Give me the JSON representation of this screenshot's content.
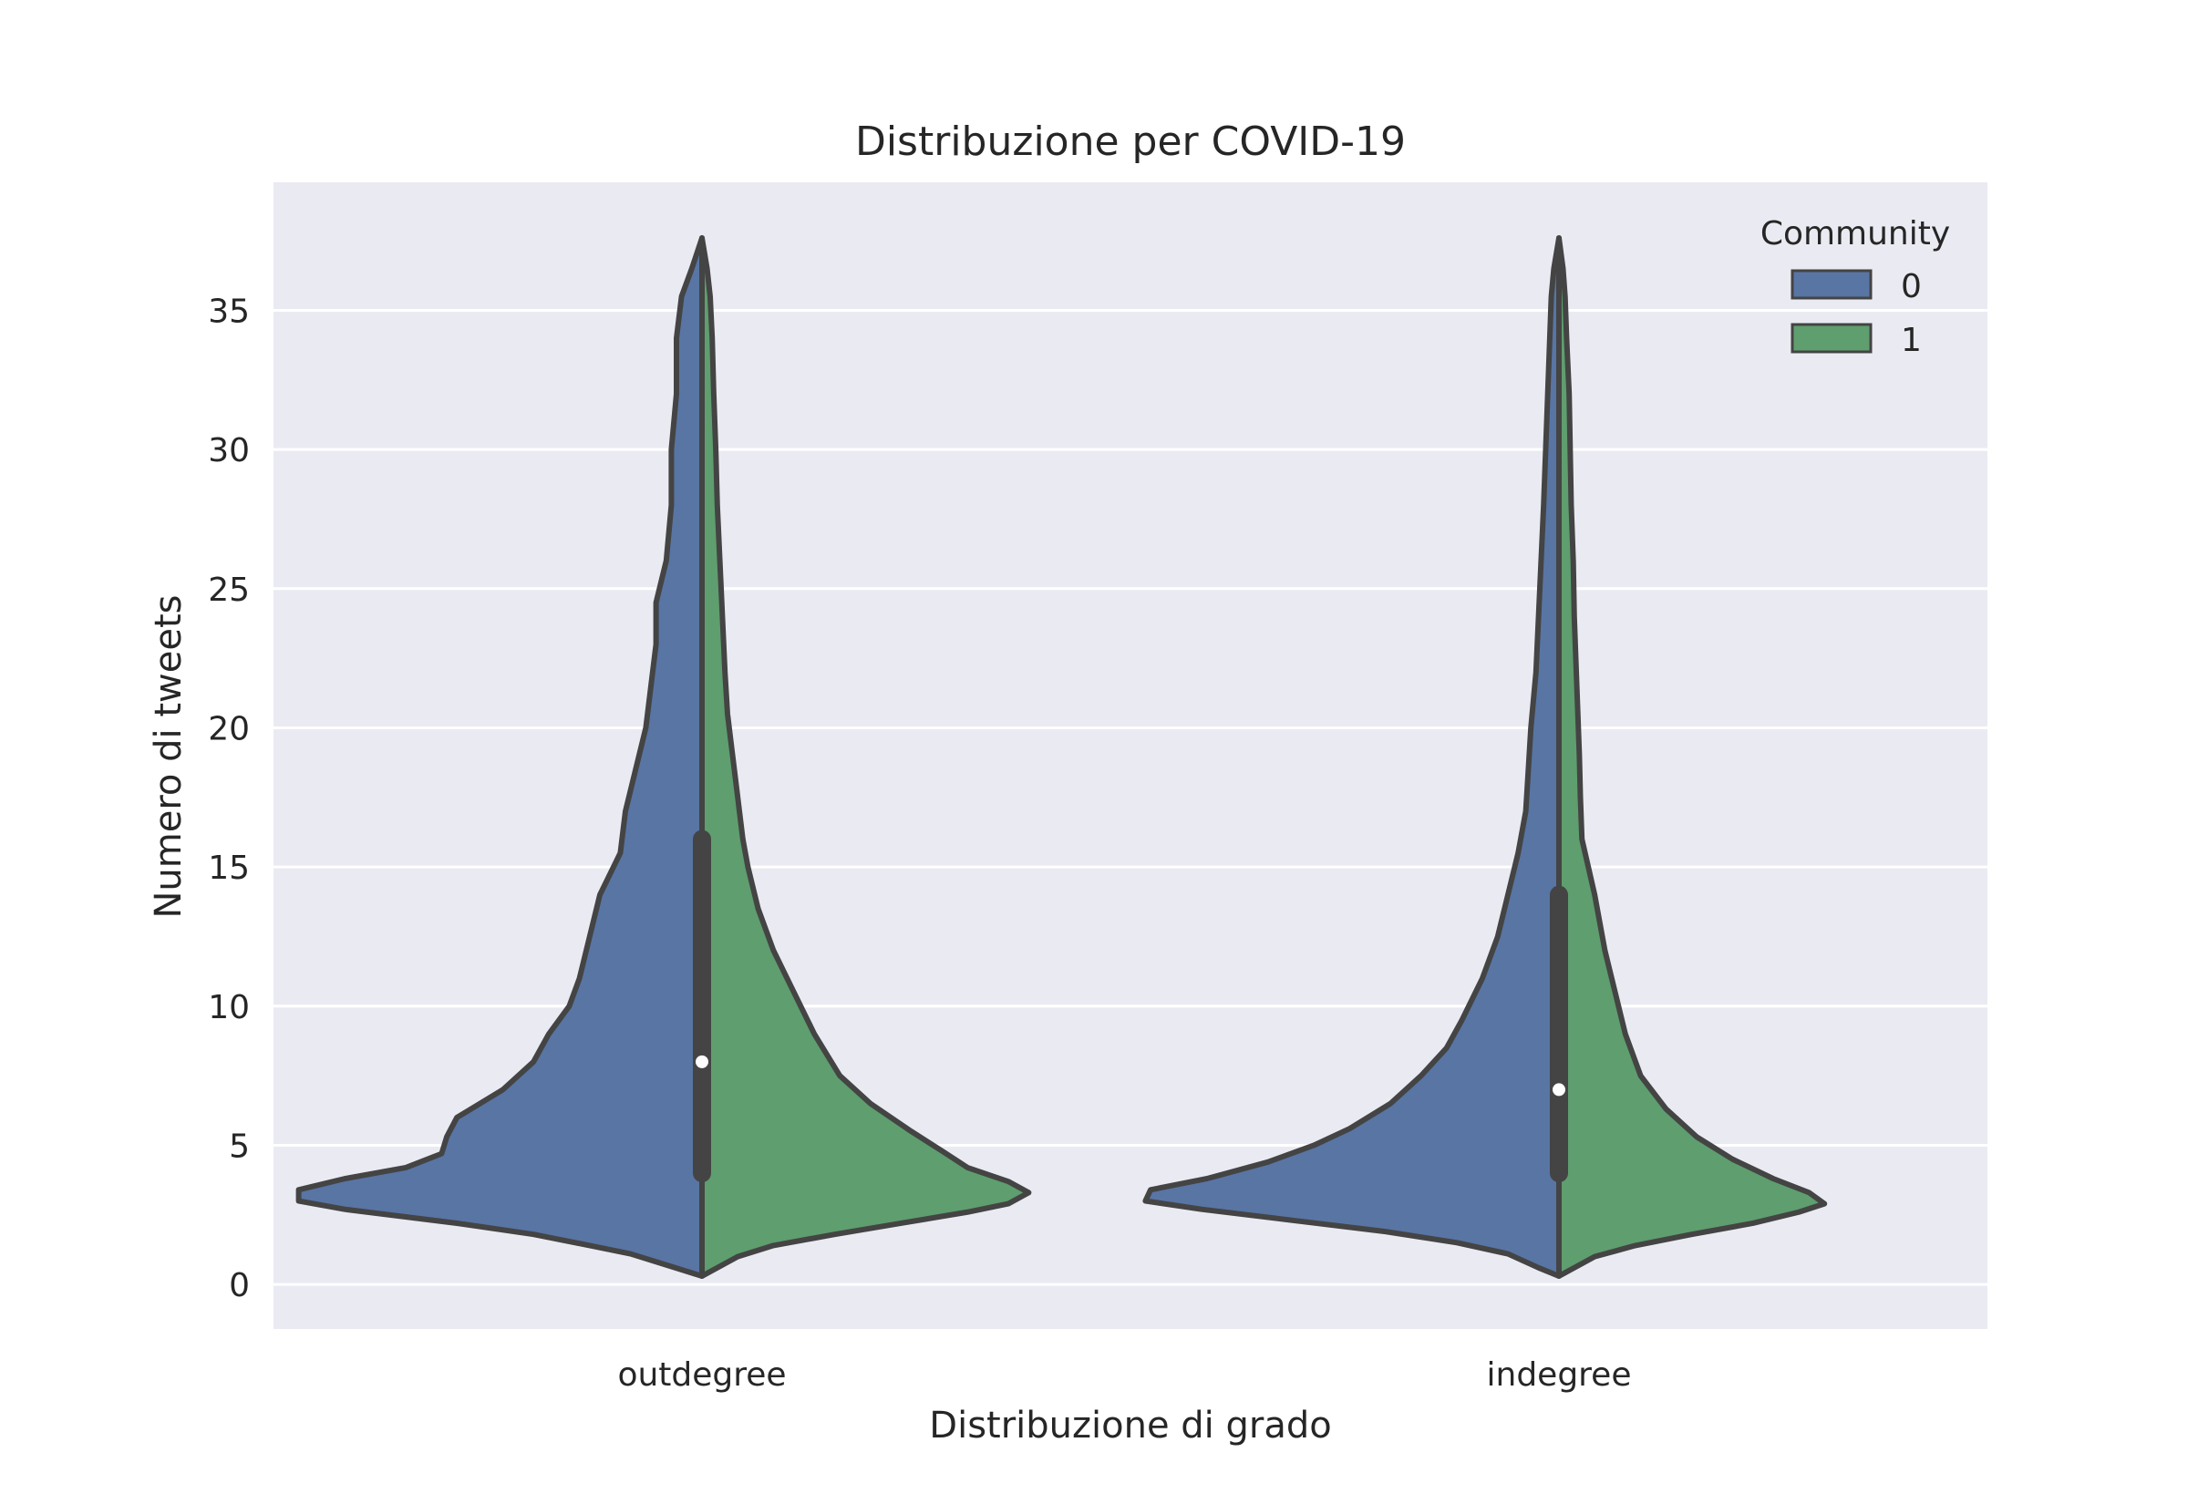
{
  "chart_data": {
    "type": "violin",
    "title": "Distribuzione per COVID-19",
    "xlabel": "Distribuzione di grado",
    "ylabel": "Numero di tweets",
    "categories": [
      "outdegree",
      "indegree"
    ],
    "y_ticks": [
      "0",
      "5",
      "10",
      "15",
      "20",
      "25",
      "30",
      "35"
    ],
    "ylim": [
      -1.6,
      39.6
    ],
    "grid": true,
    "split": true,
    "legend": {
      "title": "Community",
      "position": "top-right",
      "entries": [
        "0",
        "1"
      ]
    },
    "colors": {
      "0": "#5875a4",
      "1": "#5f9e6e",
      "background": "#eaeaf2",
      "outline": "#444444"
    },
    "series": [
      {
        "name": "0"
      },
      {
        "name": "1"
      }
    ],
    "violins": [
      {
        "category": "outdegree",
        "median": 8,
        "q1": 4,
        "q3": 16,
        "min": 0.3,
        "max": 37.6,
        "density_0": [
          [
            0.3,
            0
          ],
          [
            0.7,
            0.07
          ],
          [
            1.1,
            0.14
          ],
          [
            1.4,
            0.22
          ],
          [
            1.8,
            0.33
          ],
          [
            2.2,
            0.48
          ],
          [
            2.7,
            0.7
          ],
          [
            3.0,
            0.79
          ],
          [
            3.4,
            0.79
          ],
          [
            3.8,
            0.7
          ],
          [
            4.2,
            0.58
          ],
          [
            4.7,
            0.51
          ],
          [
            5.3,
            0.5
          ],
          [
            6.0,
            0.48
          ],
          [
            7.0,
            0.39
          ],
          [
            8.0,
            0.33
          ],
          [
            9.0,
            0.3
          ],
          [
            10.0,
            0.26
          ],
          [
            11.0,
            0.24
          ],
          [
            12.5,
            0.22
          ],
          [
            14.0,
            0.2
          ],
          [
            15.5,
            0.16
          ],
          [
            17.0,
            0.15
          ],
          [
            18.5,
            0.13
          ],
          [
            20.0,
            0.11
          ],
          [
            21.5,
            0.1
          ],
          [
            23.0,
            0.09
          ],
          [
            24.5,
            0.09
          ],
          [
            26.0,
            0.07
          ],
          [
            28.0,
            0.06
          ],
          [
            30.0,
            0.06
          ],
          [
            32.0,
            0.05
          ],
          [
            34.0,
            0.05
          ],
          [
            35.5,
            0.04
          ],
          [
            36.5,
            0.02
          ],
          [
            37.6,
            0
          ]
        ],
        "density_1": [
          [
            0.3,
            0
          ],
          [
            0.5,
            0.02
          ],
          [
            1.0,
            0.07
          ],
          [
            1.4,
            0.14
          ],
          [
            1.8,
            0.26
          ],
          [
            2.2,
            0.39
          ],
          [
            2.6,
            0.52
          ],
          [
            2.9,
            0.6
          ],
          [
            3.3,
            0.64
          ],
          [
            3.7,
            0.6
          ],
          [
            4.2,
            0.52
          ],
          [
            4.8,
            0.47
          ],
          [
            5.5,
            0.41
          ],
          [
            6.5,
            0.33
          ],
          [
            7.5,
            0.27
          ],
          [
            9.0,
            0.22
          ],
          [
            10.5,
            0.18
          ],
          [
            12.0,
            0.14
          ],
          [
            13.5,
            0.11
          ],
          [
            15.0,
            0.09
          ],
          [
            16.0,
            0.08
          ],
          [
            17.5,
            0.07
          ],
          [
            19.0,
            0.06
          ],
          [
            20.5,
            0.05
          ],
          [
            22.0,
            0.045
          ],
          [
            24.0,
            0.04
          ],
          [
            26.0,
            0.035
          ],
          [
            28.0,
            0.03
          ],
          [
            30.0,
            0.027
          ],
          [
            32.0,
            0.023
          ],
          [
            34.0,
            0.02
          ],
          [
            35.5,
            0.016
          ],
          [
            36.5,
            0.01
          ],
          [
            37.6,
            0
          ]
        ]
      },
      {
        "category": "indegree",
        "median": 7,
        "q1": 4,
        "q3": 14,
        "min": 0.3,
        "max": 37.6,
        "density_0": [
          [
            0.3,
            0
          ],
          [
            0.6,
            0.04
          ],
          [
            1.1,
            0.1
          ],
          [
            1.5,
            0.2
          ],
          [
            1.9,
            0.34
          ],
          [
            2.3,
            0.52
          ],
          [
            2.7,
            0.7
          ],
          [
            3.0,
            0.81
          ],
          [
            3.4,
            0.8
          ],
          [
            3.8,
            0.69
          ],
          [
            4.4,
            0.57
          ],
          [
            5.0,
            0.48
          ],
          [
            5.6,
            0.41
          ],
          [
            6.5,
            0.33
          ],
          [
            7.5,
            0.27
          ],
          [
            8.5,
            0.22
          ],
          [
            9.5,
            0.19
          ],
          [
            11.0,
            0.15
          ],
          [
            12.5,
            0.12
          ],
          [
            14.0,
            0.1
          ],
          [
            15.5,
            0.08
          ],
          [
            17.0,
            0.065
          ],
          [
            18.5,
            0.06
          ],
          [
            20.0,
            0.055
          ],
          [
            22.0,
            0.045
          ],
          [
            24.0,
            0.04
          ],
          [
            26.0,
            0.035
          ],
          [
            28.0,
            0.03
          ],
          [
            30.0,
            0.026
          ],
          [
            32.0,
            0.022
          ],
          [
            34.0,
            0.018
          ],
          [
            35.5,
            0.015
          ],
          [
            36.5,
            0.01
          ],
          [
            37.6,
            0
          ]
        ],
        "density_1": [
          [
            0.3,
            0
          ],
          [
            0.5,
            0.02
          ],
          [
            1.0,
            0.07
          ],
          [
            1.4,
            0.15
          ],
          [
            1.8,
            0.26
          ],
          [
            2.2,
            0.38
          ],
          [
            2.6,
            0.47
          ],
          [
            2.9,
            0.52
          ],
          [
            3.3,
            0.49
          ],
          [
            3.8,
            0.42
          ],
          [
            4.5,
            0.34
          ],
          [
            5.3,
            0.27
          ],
          [
            6.3,
            0.21
          ],
          [
            7.5,
            0.16
          ],
          [
            9.0,
            0.13
          ],
          [
            10.5,
            0.11
          ],
          [
            12.0,
            0.09
          ],
          [
            14.0,
            0.07
          ],
          [
            16.0,
            0.045
          ],
          [
            17.5,
            0.042
          ],
          [
            19.0,
            0.04
          ],
          [
            20.5,
            0.037
          ],
          [
            22.0,
            0.034
          ],
          [
            24.0,
            0.03
          ],
          [
            26.0,
            0.028
          ],
          [
            28.0,
            0.024
          ],
          [
            30.0,
            0.022
          ],
          [
            32.0,
            0.02
          ],
          [
            34.0,
            0.015
          ],
          [
            35.5,
            0.012
          ],
          [
            36.5,
            0.008
          ],
          [
            37.6,
            0
          ]
        ]
      }
    ]
  }
}
